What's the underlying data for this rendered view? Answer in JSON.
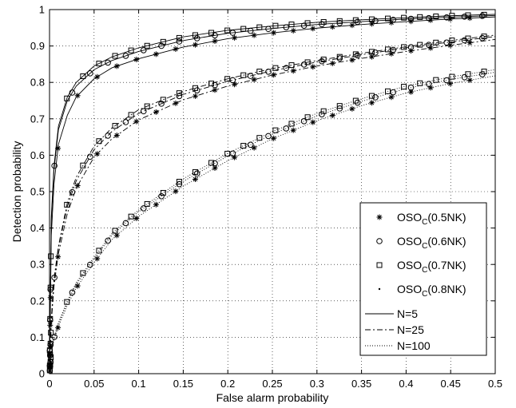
{
  "chart_data": {
    "type": "line",
    "title": "",
    "xlabel": "False alarm probability",
    "ylabel": "Detection probability",
    "xlim": [
      0,
      0.5
    ],
    "ylim": [
      0,
      1
    ],
    "xticks": [
      0,
      0.05,
      0.1,
      0.15,
      0.2,
      0.25,
      0.3,
      0.35,
      0.4,
      0.45,
      0.5
    ],
    "yticks": [
      0,
      0.1,
      0.2,
      0.3,
      0.4,
      0.5,
      0.6,
      0.7,
      0.8,
      0.9,
      1
    ],
    "xtick_labels": [
      "0",
      "0.05",
      "0.1",
      "0.15",
      "0.2",
      "0.25",
      "0.3",
      "0.35",
      "0.4",
      "0.45",
      "0.5"
    ],
    "ytick_labels": [
      "0",
      "0.1",
      "0.2",
      "0.3",
      "0.4",
      "0.5",
      "0.6",
      "0.7",
      "0.8",
      "0.9",
      "1"
    ],
    "grid": true,
    "grid_style": "dotted",
    "legend_position": "bottom-right",
    "marker_legend": [
      {
        "base": "OSO",
        "sub": "C",
        "suffix": "(0.5NK)",
        "marker": "asterisk"
      },
      {
        "base": "OSO",
        "sub": "C",
        "suffix": "(0.6NK)",
        "marker": "circle"
      },
      {
        "base": "OSO",
        "sub": "C",
        "suffix": "(0.7NK)",
        "marker": "square"
      },
      {
        "base": "OSO",
        "sub": "C",
        "suffix": "(0.8NK)",
        "marker": "dot"
      }
    ],
    "line_legend": [
      {
        "label": "N=5",
        "style": "solid"
      },
      {
        "label": "N=25",
        "style": "dashdot"
      },
      {
        "label": "N=100",
        "style": "dotted"
      }
    ],
    "x": [
      0,
      0.002,
      0.005,
      0.01,
      0.02,
      0.03,
      0.05,
      0.07,
      0.1,
      0.15,
      0.2,
      0.25,
      0.3,
      0.35,
      0.4,
      0.45,
      0.5
    ],
    "series": [
      {
        "group": "N=5",
        "style": "solid",
        "marker": "square",
        "values": [
          0,
          0.43,
          0.57,
          0.68,
          0.76,
          0.8,
          0.845,
          0.87,
          0.895,
          0.925,
          0.943,
          0.955,
          0.965,
          0.972,
          0.978,
          0.983,
          0.987
        ]
      },
      {
        "group": "N=5",
        "style": "solid",
        "marker": "circle",
        "values": [
          0,
          0.42,
          0.56,
          0.67,
          0.75,
          0.79,
          0.835,
          0.86,
          0.885,
          0.915,
          0.935,
          0.948,
          0.959,
          0.967,
          0.974,
          0.979,
          0.984
        ]
      },
      {
        "group": "N=5",
        "style": "solid",
        "marker": "asterisk",
        "values": [
          0,
          0.38,
          0.52,
          0.63,
          0.71,
          0.76,
          0.81,
          0.84,
          0.865,
          0.897,
          0.92,
          0.936,
          0.949,
          0.959,
          0.967,
          0.974,
          0.98
        ]
      },
      {
        "group": "N=25",
        "style": "dashdot",
        "marker": "square",
        "values": [
          0,
          0.15,
          0.26,
          0.35,
          0.47,
          0.54,
          0.625,
          0.675,
          0.725,
          0.775,
          0.81,
          0.838,
          0.86,
          0.88,
          0.898,
          0.915,
          0.93
        ]
      },
      {
        "group": "N=25",
        "style": "dashdot",
        "marker": "circle",
        "values": [
          0,
          0.145,
          0.255,
          0.345,
          0.46,
          0.53,
          0.615,
          0.665,
          0.715,
          0.767,
          0.803,
          0.832,
          0.856,
          0.876,
          0.895,
          0.911,
          0.926
        ]
      },
      {
        "group": "N=25",
        "style": "dashdot",
        "marker": "asterisk",
        "values": [
          0,
          0.14,
          0.24,
          0.33,
          0.44,
          0.51,
          0.595,
          0.645,
          0.697,
          0.752,
          0.79,
          0.82,
          0.845,
          0.866,
          0.885,
          0.902,
          0.918
        ]
      },
      {
        "group": "N=100",
        "style": "dotted",
        "marker": "square",
        "values": [
          0,
          0.06,
          0.1,
          0.14,
          0.2,
          0.25,
          0.32,
          0.385,
          0.45,
          0.535,
          0.605,
          0.665,
          0.715,
          0.755,
          0.79,
          0.815,
          0.835
        ]
      },
      {
        "group": "N=100",
        "style": "dotted",
        "marker": "circle",
        "values": [
          0,
          0.058,
          0.097,
          0.137,
          0.196,
          0.245,
          0.315,
          0.38,
          0.445,
          0.528,
          0.598,
          0.658,
          0.708,
          0.748,
          0.783,
          0.808,
          0.828
        ]
      },
      {
        "group": "N=100",
        "style": "dotted",
        "marker": "asterisk",
        "values": [
          0,
          0.055,
          0.093,
          0.13,
          0.188,
          0.236,
          0.305,
          0.368,
          0.432,
          0.515,
          0.585,
          0.645,
          0.695,
          0.736,
          0.771,
          0.797,
          0.818
        ]
      }
    ]
  }
}
